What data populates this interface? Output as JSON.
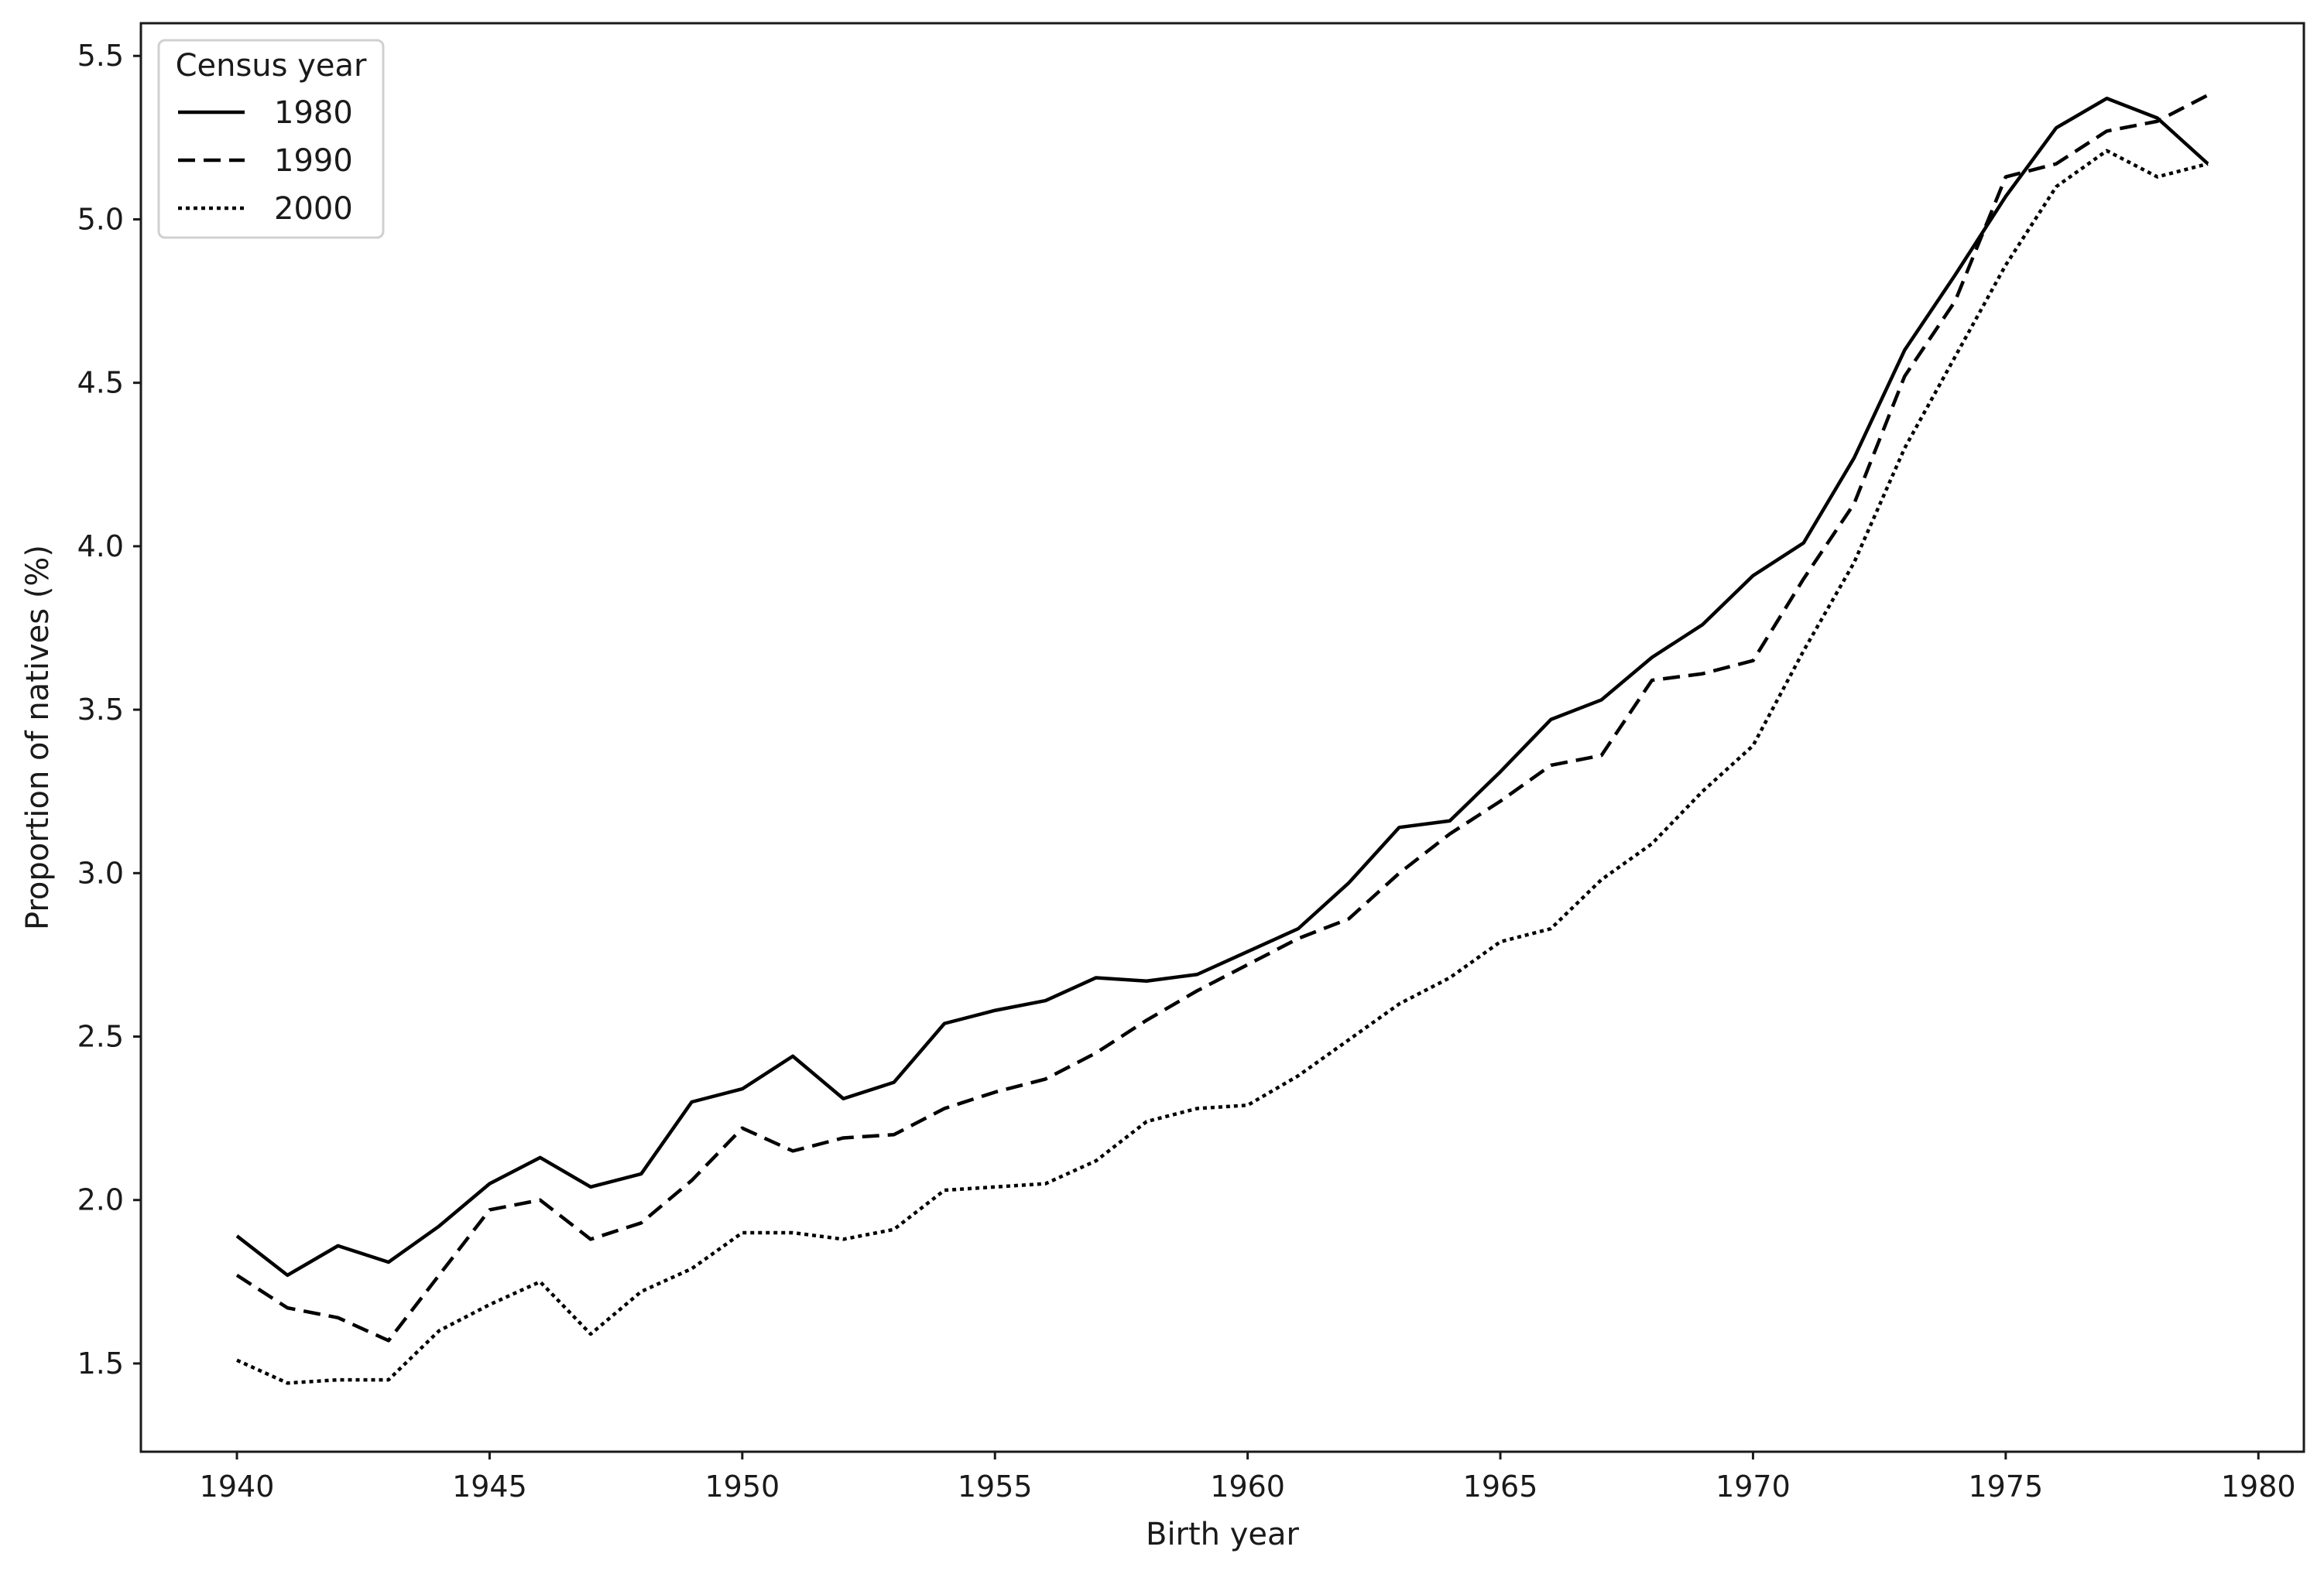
{
  "chart_data": {
    "type": "line",
    "xlabel": "Birth year",
    "ylabel": "Proportion of natives (%)",
    "xlim": [
      1938.1,
      1980.9
    ],
    "ylim": [
      1.23,
      5.6
    ],
    "xticks": [
      1940,
      1945,
      1950,
      1955,
      1960,
      1965,
      1970,
      1975,
      1980
    ],
    "yticks": [
      1.5,
      2.0,
      2.5,
      3.0,
      3.5,
      4.0,
      4.5,
      5.0,
      5.5
    ],
    "ytick_labels": [
      "1.5",
      "2.0",
      "2.5",
      "3.0",
      "3.5",
      "4.0",
      "4.5",
      "5.0",
      "5.5"
    ],
    "grid": false,
    "legend": {
      "title": "Census year",
      "placement": "top-left"
    },
    "x": [
      1940,
      1941,
      1942,
      1943,
      1944,
      1945,
      1946,
      1947,
      1948,
      1949,
      1950,
      1951,
      1952,
      1953,
      1954,
      1955,
      1956,
      1957,
      1958,
      1959,
      1960,
      1961,
      1962,
      1963,
      1964,
      1965,
      1966,
      1967,
      1968,
      1969,
      1970,
      1971,
      1972,
      1973,
      1974,
      1975,
      1976,
      1977,
      1978,
      1979
    ],
    "series": [
      {
        "name": "1980",
        "style": "solid",
        "color": "#000000",
        "values": [
          1.89,
          1.77,
          1.86,
          1.81,
          1.92,
          2.05,
          2.13,
          2.04,
          2.08,
          2.3,
          2.34,
          2.44,
          2.31,
          2.36,
          2.54,
          2.58,
          2.61,
          2.68,
          2.67,
          2.69,
          2.76,
          2.83,
          2.97,
          3.14,
          3.16,
          3.31,
          3.47,
          3.53,
          3.66,
          3.76,
          3.91,
          4.01,
          4.27,
          4.6,
          4.83,
          5.07,
          5.28,
          5.37,
          5.31,
          5.17
        ]
      },
      {
        "name": "1990",
        "style": "dashed",
        "color": "#000000",
        "values": [
          1.77,
          1.67,
          1.64,
          1.57,
          1.77,
          1.97,
          2.0,
          1.88,
          1.93,
          2.06,
          2.22,
          2.15,
          2.19,
          2.2,
          2.28,
          2.33,
          2.37,
          2.45,
          2.55,
          2.64,
          2.72,
          2.8,
          2.86,
          3.0,
          3.12,
          3.22,
          3.33,
          3.36,
          3.59,
          3.61,
          3.65,
          3.9,
          4.13,
          4.52,
          4.75,
          5.13,
          5.17,
          5.27,
          5.3,
          5.38
        ]
      },
      {
        "name": "2000",
        "style": "dotted",
        "color": "#000000",
        "values": [
          1.51,
          1.44,
          1.45,
          1.45,
          1.6,
          1.68,
          1.75,
          1.59,
          1.72,
          1.79,
          1.9,
          1.9,
          1.88,
          1.91,
          2.03,
          2.04,
          2.05,
          2.12,
          2.24,
          2.28,
          2.29,
          2.38,
          2.49,
          2.6,
          2.68,
          2.79,
          2.83,
          2.98,
          3.09,
          3.25,
          3.39,
          3.68,
          3.95,
          4.3,
          4.58,
          4.86,
          5.1,
          5.21,
          5.13,
          5.17
        ]
      }
    ]
  }
}
